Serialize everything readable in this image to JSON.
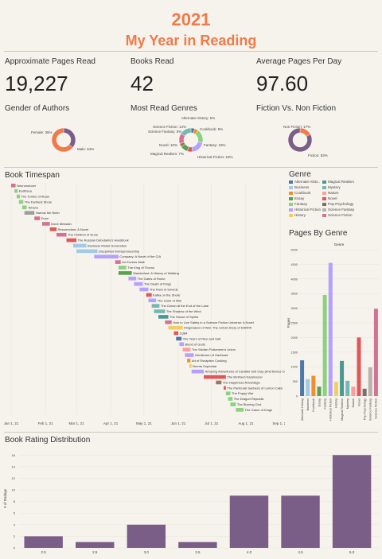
{
  "header": {
    "year": "2021",
    "subtitle": "My Year in Reading"
  },
  "kpis": [
    {
      "label": "Approximate Pages Read",
      "value": "19,227"
    },
    {
      "label": "Books Read",
      "value": "42"
    },
    {
      "label": "Average Pages Per Day",
      "value": "97.60"
    }
  ],
  "sections": {
    "gender": "Gender of Authors",
    "genres": "Most Read Genres",
    "fiction": "Fiction Vs. Non Fiction",
    "timespan": "Book Timespan",
    "genre_legend": "Genre",
    "pages_by_genre": "Pages By Genre",
    "rating": "Book Rating Distribution"
  },
  "colors": {
    "accent": "#f07a4a",
    "purple": "#7b5e87",
    "female": "#7b5e87",
    "male": "#f07a4a"
  },
  "chart_data": [
    {
      "id": "gender",
      "type": "pie",
      "title": "Gender of Authors",
      "slices": [
        {
          "label": "Female: 36%",
          "value": 36,
          "color": "#7b5e87"
        },
        {
          "label": "Male: 64%",
          "value": 64,
          "color": "#f07a4a"
        }
      ]
    },
    {
      "id": "genres",
      "type": "pie",
      "title": "Most Read Genres",
      "slices": [
        {
          "label": "Alternate History: 5%",
          "value": 5,
          "color": "#4e79a7"
        },
        {
          "label": "Cookbook: 5%",
          "value": 5,
          "color": "#f28e2b"
        },
        {
          "label": "Fantasy: 19%",
          "value": 19,
          "color": "#8cd17d"
        },
        {
          "label": "Historical Fiction: 19%",
          "value": 19,
          "color": "#b6a0ff"
        },
        {
          "label": "Magical Realism: 7%",
          "value": 7,
          "color": "#e15759"
        },
        {
          "label": "Novel: 10%",
          "value": 10,
          "color": "#59a14f"
        },
        {
          "label": "Science Fantasy: 5%",
          "value": 5,
          "color": "#9d7660"
        },
        {
          "label": "Science Fiction: 14%",
          "value": 14,
          "color": "#d37295"
        },
        {
          "label": "",
          "value": 16,
          "color": "#76b7b2"
        }
      ]
    },
    {
      "id": "fiction",
      "type": "pie",
      "title": "Fiction Vs. Non Fiction",
      "slices": [
        {
          "label": "Non Fiction: 17%",
          "value": 17,
          "color": "#f07a4a"
        },
        {
          "label": "Fiction: 83%",
          "value": 83,
          "color": "#7b5e87"
        }
      ]
    },
    {
      "id": "timespan",
      "type": "bar",
      "title": "Book Timespan",
      "x_ticks": [
        "Jan 1, 21",
        "Feb 1, 21",
        "Mar 1, 21",
        "Apr 1, 21",
        "May 1, 21",
        "Jun 1, 21",
        "Jul 1, 21",
        "Aug 1, 21",
        "Sep 1, 21"
      ],
      "books": [
        {
          "title": "Neuromancer",
          "start": "2021-01-01",
          "end": "2021-01-05",
          "color": "#d37295"
        },
        {
          "title": "Earthsea",
          "start": "2021-01-04",
          "end": "2021-01-07",
          "color": "#8cd17d"
        },
        {
          "title": "The Tombs of Atuan",
          "start": "2021-01-06",
          "end": "2021-01-09",
          "color": "#8cd17d"
        },
        {
          "title": "The Farthest Shore",
          "start": "2021-01-08",
          "end": "2021-01-12",
          "color": "#8cd17d"
        },
        {
          "title": "Tehanu",
          "start": "2021-01-11",
          "end": "2021-01-15",
          "color": "#8cd17d"
        },
        {
          "title": "Harrow the Ninth",
          "start": "2021-01-13",
          "end": "2021-01-22",
          "color": "#9d9d9d"
        },
        {
          "title": "Dune",
          "start": "2021-01-22",
          "end": "2021-01-27",
          "color": "#d37295"
        },
        {
          "title": "Dune Messiah",
          "start": "2021-01-29",
          "end": "2021-02-05",
          "color": "#d37295"
        },
        {
          "title": "Resurrection: A Novel",
          "start": "2021-02-05",
          "end": "2021-02-11",
          "color": "#e15759"
        },
        {
          "title": "The Children of Dune",
          "start": "2021-02-11",
          "end": "2021-02-20",
          "color": "#d37295"
        },
        {
          "title": "The Russian Debutante's Handbook",
          "start": "2021-02-20",
          "end": "2021-03-01",
          "color": "#e15759"
        },
        {
          "title": "Business Model Generation",
          "start": "2021-02-26",
          "end": "2021-03-10",
          "color": "#a0cbe8"
        },
        {
          "title": "Disciplined Entrepreneurship",
          "start": "2021-03-01",
          "end": "2021-03-20",
          "color": "#a0cbe8"
        },
        {
          "title": "Company: A Novel of the CIA",
          "start": "2021-03-17",
          "end": "2021-04-08",
          "color": "#b6a0ff"
        },
        {
          "title": "An Excess Male",
          "start": "2021-04-05",
          "end": "2021-04-10",
          "color": "#d37295"
        },
        {
          "title": "The King of Thorns",
          "start": "2021-04-08",
          "end": "2021-04-15",
          "color": "#8cd17d"
        },
        {
          "title": "Wanderlust: A History of Walking",
          "start": "2021-04-08",
          "end": "2021-04-20",
          "color": "#59a14f"
        },
        {
          "title": "The Gates of Rome",
          "start": "2021-04-17",
          "end": "2021-04-24",
          "color": "#b6a0ff"
        },
        {
          "title": "The Death of Kings",
          "start": "2021-04-22",
          "end": "2021-04-30",
          "color": "#b6a0ff"
        },
        {
          "title": "The Field of Swords",
          "start": "2021-04-27",
          "end": "2021-05-05",
          "color": "#b6a0ff"
        },
        {
          "title": "Kafka on the Shore",
          "start": "2021-05-03",
          "end": "2021-05-08",
          "color": "#e15759"
        },
        {
          "title": "The Gods of War",
          "start": "2021-05-05",
          "end": "2021-05-12",
          "color": "#b6a0ff"
        },
        {
          "title": "The Ocean at the End of the Lane",
          "start": "2021-05-08",
          "end": "2021-05-15",
          "color": "#76b7b2"
        },
        {
          "title": "The Shadow of the Wind",
          "start": "2021-05-10",
          "end": "2021-05-20",
          "color": "#76b7b2"
        },
        {
          "title": "The House of Spirits",
          "start": "2021-05-14",
          "end": "2021-05-23",
          "color": "#499894"
        },
        {
          "title": "How to Live Safely in a Science Fiction Universe: A Novel",
          "start": "2021-05-20",
          "end": "2021-05-26",
          "color": "#d37295"
        },
        {
          "title": "Kingmakers of War: The Untold Story of DARPA",
          "start": "2021-05-23",
          "end": "2021-06-05",
          "color": "#f1ce63"
        },
        {
          "title": "1Q84",
          "start": "2021-05-28",
          "end": "2021-06-01",
          "color": "#e15759"
        },
        {
          "title": "The Years of Rice and Salt",
          "start": "2021-05-30",
          "end": "2021-06-04",
          "color": "#4e79a7"
        },
        {
          "title": "Blood of Gods",
          "start": "2021-06-02",
          "end": "2021-06-06",
          "color": "#b6a0ff"
        },
        {
          "title": "The Yiddish Policemen's Union",
          "start": "2021-06-05",
          "end": "2021-06-12",
          "color": "#ff9d9a"
        },
        {
          "title": "Gentlemen of Harlhoad",
          "start": "2021-06-07",
          "end": "2021-06-15",
          "color": "#b6a0ff"
        },
        {
          "title": "Art of Escapism Cooking",
          "start": "2021-06-09",
          "end": "2021-06-12",
          "color": "#f28e2b"
        },
        {
          "title": "Burma Superstar",
          "start": "2021-06-11",
          "end": "2021-06-13",
          "color": "#f1ce63"
        },
        {
          "title": "Amazing Adventures of Cavalier and Clay (And Bonus Content)",
          "start": "2021-06-13",
          "end": "2021-06-24",
          "color": "#b6a0ff"
        },
        {
          "title": "The Brothers Karamazov",
          "start": "2021-06-24",
          "end": "2021-07-14",
          "color": "#e15759"
        },
        {
          "title": "The Happiness Advantage",
          "start": "2021-07-05",
          "end": "2021-07-10",
          "color": "#9d7660"
        },
        {
          "title": "The Particular Sadness of Lemon Cake",
          "start": "2021-07-12",
          "end": "2021-07-14",
          "color": "#e15759"
        },
        {
          "title": "The Poppy War",
          "start": "2021-07-14",
          "end": "2021-07-18",
          "color": "#8cd17d"
        },
        {
          "title": "The Dragon Republic",
          "start": "2021-07-16",
          "end": "2021-07-20",
          "color": "#8cd17d"
        },
        {
          "title": "The Burning God",
          "start": "2021-07-18",
          "end": "2021-07-23",
          "color": "#8cd17d"
        },
        {
          "title": "The Grace of Kings",
          "start": "2021-07-23",
          "end": "2021-07-30",
          "color": "#8cd17d"
        }
      ]
    },
    {
      "id": "pages_by_genre",
      "type": "bar",
      "title": "Genre",
      "ylabel": "Pages",
      "ylim": [
        0,
        5000
      ],
      "y_ticks": [
        0,
        500,
        1000,
        1500,
        2000,
        2500,
        3000,
        3500,
        4000,
        4500,
        5000
      ],
      "categories": [
        "Alternate History",
        "Business",
        "Cookbook",
        "Essay",
        "Fantasy",
        "Historical Fiction",
        "History",
        "Magical Realism",
        "Mystery",
        "Nature",
        "Novel",
        "Pop Psychology",
        "Science Fantasy",
        "Science Fiction"
      ],
      "values": [
        1220,
        580,
        690,
        320,
        3450,
        4550,
        480,
        1200,
        520,
        320,
        2000,
        250,
        980,
        2980
      ],
      "colors": [
        "#4e79a7",
        "#a0cbe8",
        "#f28e2b",
        "#59a14f",
        "#8cd17d",
        "#b6a0ff",
        "#f1ce63",
        "#499894",
        "#76b7b2",
        "#ff9d9a",
        "#e15759",
        "#79706e",
        "#bab0ac",
        "#d37295"
      ]
    },
    {
      "id": "rating",
      "type": "bar",
      "title": "Book Rating Distribution",
      "ylabel": "# of Ratings",
      "ylim": [
        0,
        17
      ],
      "y_ticks": [
        0,
        2,
        4,
        6,
        8,
        10,
        12,
        14,
        16
      ],
      "categories": [
        "2.5",
        "2.5",
        "3.0",
        "3.5",
        "4.0",
        "4.5",
        "5.0"
      ],
      "values": [
        2,
        1,
        4,
        1,
        9,
        9,
        16
      ]
    }
  ],
  "genre_legend": [
    {
      "label": "Alternate Histo..",
      "color": "#4e79a7"
    },
    {
      "label": "Magical Realism",
      "color": "#499894"
    },
    {
      "label": "Business",
      "color": "#a0cbe8"
    },
    {
      "label": "Mystery",
      "color": "#76b7b2"
    },
    {
      "label": "Cookbook",
      "color": "#f28e2b"
    },
    {
      "label": "Nature",
      "color": "#ff9d9a"
    },
    {
      "label": "Essay",
      "color": "#59a14f"
    },
    {
      "label": "Novel",
      "color": "#e15759"
    },
    {
      "label": "Fantasy",
      "color": "#8cd17d"
    },
    {
      "label": "Pop Psychology",
      "color": "#79706e"
    },
    {
      "label": "Historical Fiction",
      "color": "#b6a0ff"
    },
    {
      "label": "Science Fantasy",
      "color": "#bab0ac"
    },
    {
      "label": "History",
      "color": "#f1ce63"
    },
    {
      "label": "Science Fiction",
      "color": "#d37295"
    }
  ]
}
